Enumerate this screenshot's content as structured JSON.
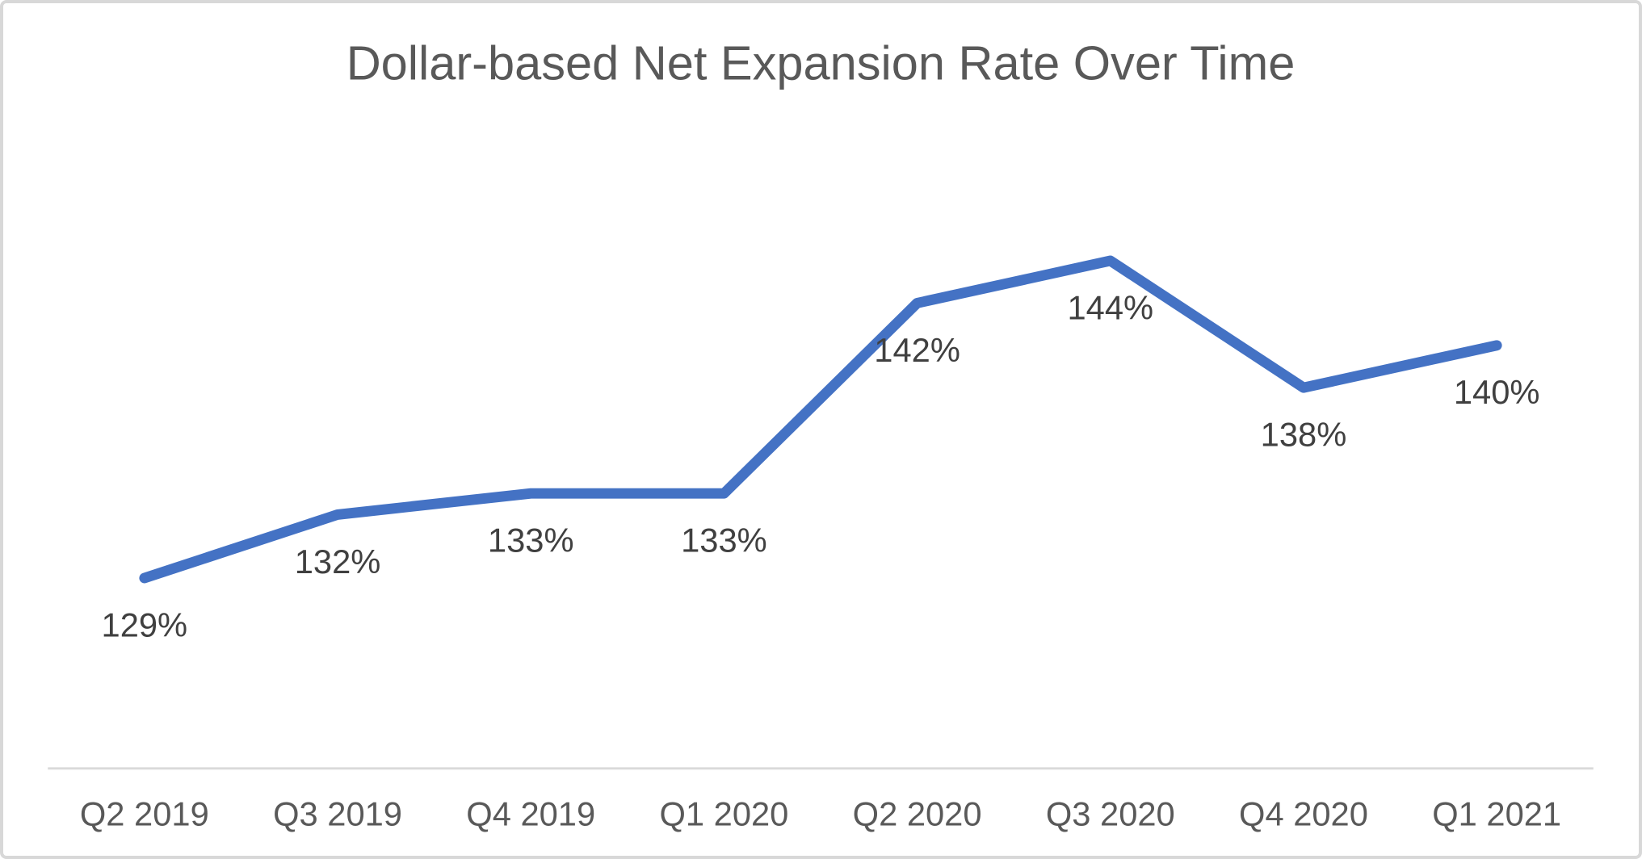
{
  "chart_data": {
    "type": "line",
    "title": "Dollar-based Net Expansion Rate Over Time",
    "categories": [
      "Q2 2019",
      "Q3 2019",
      "Q4 2019",
      "Q1 2020",
      "Q2 2020",
      "Q3 2020",
      "Q4 2020",
      "Q1 2021"
    ],
    "values": [
      129,
      132,
      133,
      133,
      142,
      144,
      138,
      140
    ],
    "data_labels": [
      "129%",
      "132%",
      "133%",
      "133%",
      "142%",
      "144%",
      "138%",
      "140%"
    ],
    "xlabel": "",
    "ylabel": "",
    "ylim": [
      120,
      150
    ],
    "grid": false,
    "legend": "none",
    "data_label_position": "below",
    "colors": {
      "line": "#4472C4",
      "title": "#595959",
      "data_label": "#404040",
      "axis_label": "#595959",
      "axis_line": "#D9D9D9",
      "background": "#FFFFFF",
      "border": "#D8D8D8"
    }
  }
}
